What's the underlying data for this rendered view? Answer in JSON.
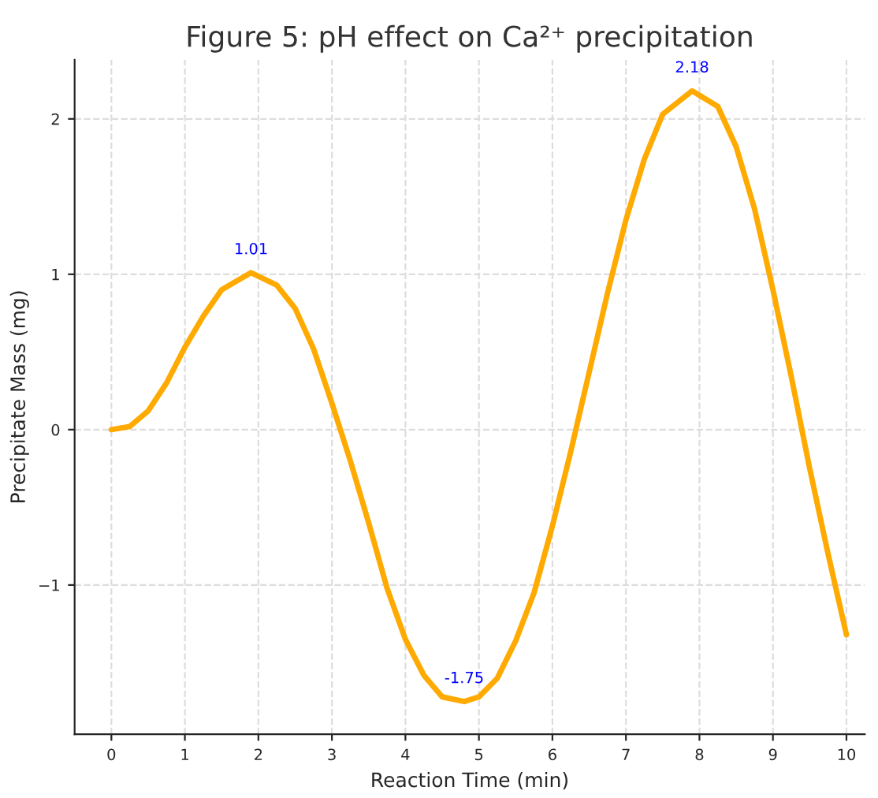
{
  "chart_data": {
    "type": "line",
    "title": "Figure 5: pH effect on Ca²⁺ precipitation",
    "xlabel": "Reaction Time (min)",
    "ylabel": "Precipitate Mass (mg)",
    "x": [
      0,
      0.25,
      0.5,
      0.75,
      1,
      1.25,
      1.5,
      1.9,
      2.25,
      2.5,
      2.75,
      3,
      3.25,
      3.5,
      3.75,
      4,
      4.25,
      4.5,
      4.8,
      5,
      5.25,
      5.5,
      5.75,
      6,
      6.25,
      6.5,
      6.75,
      7,
      7.25,
      7.5,
      7.9,
      8.25,
      8.5,
      8.75,
      9,
      9.25,
      9.5,
      9.75,
      10
    ],
    "series": [
      {
        "color": "#ffaa00",
        "values": [
          0,
          0.02,
          0.12,
          0.3,
          0.53,
          0.73,
          0.9,
          1.01,
          0.93,
          0.78,
          0.52,
          0.17,
          -0.2,
          -0.6,
          -1.02,
          -1.35,
          -1.58,
          -1.72,
          -1.75,
          -1.72,
          -1.6,
          -1.36,
          -1.05,
          -0.62,
          -0.14,
          0.37,
          0.88,
          1.35,
          1.74,
          2.03,
          2.18,
          2.08,
          1.82,
          1.42,
          0.9,
          0.34,
          -0.25,
          -0.8,
          -1.32
        ]
      }
    ],
    "annotations": [
      {
        "text": "1.01",
        "x": 1.9,
        "y": 1.01
      },
      {
        "text": "-1.75",
        "x": 4.8,
        "y": -1.75
      },
      {
        "text": "2.18",
        "x": 7.9,
        "y": 2.18
      }
    ],
    "xlim": [
      -0.5,
      10.25
    ],
    "ylim": [
      -1.96,
      2.38
    ],
    "xticks": [
      0,
      1,
      2,
      3,
      4,
      5,
      6,
      7,
      8,
      9,
      10
    ],
    "yticks": [
      {
        "value": -1,
        "label": "−1"
      },
      0,
      1,
      2
    ],
    "grid": true,
    "marker": "none",
    "line_style": "solid"
  }
}
